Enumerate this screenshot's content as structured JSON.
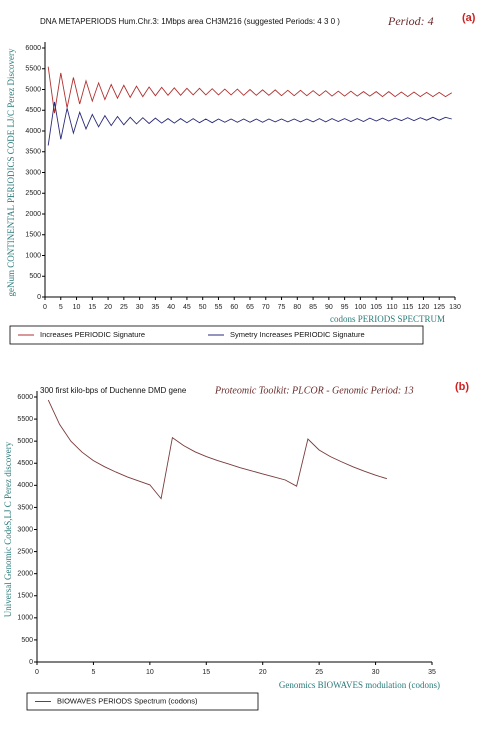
{
  "chart_data": [
    {
      "type": "line",
      "title": "DNA METAPERIODS Hum.Chr.3: 1Mbps area CH3M216 (suggested Periods: 4 3 0 )",
      "annotation": "Period:  4",
      "panel_label": "(a)",
      "x_label": "codons PERIODS SPECTRUM",
      "y_label": "geNum CONTINENTAL PERIODICS CODE LJ/C Perez Discovery",
      "x": [
        1,
        3,
        5,
        7,
        9,
        11,
        13,
        15,
        17,
        19,
        21,
        23,
        25,
        27,
        29,
        31,
        33,
        35,
        37,
        39,
        41,
        43,
        45,
        47,
        49,
        51,
        53,
        55,
        57,
        59,
        61,
        63,
        65,
        67,
        69,
        71,
        73,
        75,
        77,
        79,
        81,
        83,
        85,
        87,
        89,
        91,
        93,
        95,
        97,
        99,
        101,
        103,
        105,
        107,
        109,
        111,
        113,
        115,
        117,
        119,
        121,
        123,
        125,
        127,
        129
      ],
      "series": [
        {
          "name": "Increases PERIODIC Signature",
          "color": "#b03030",
          "values": [
            5550,
            4430,
            5400,
            4560,
            5290,
            4650,
            5210,
            4720,
            5160,
            4760,
            5120,
            4790,
            5100,
            4810,
            5080,
            4830,
            5060,
            4850,
            5050,
            4860,
            5040,
            4860,
            5030,
            4870,
            5030,
            4870,
            5020,
            4870,
            5010,
            4870,
            5010,
            4860,
            5000,
            4860,
            4990,
            4860,
            4990,
            4850,
            4980,
            4850,
            4980,
            4850,
            4970,
            4850,
            4970,
            4840,
            4960,
            4840,
            4960,
            4840,
            4950,
            4840,
            4950,
            4830,
            4950,
            4830,
            4940,
            4830,
            4940,
            4830,
            4930,
            4830,
            4930,
            4830,
            4920
          ]
        },
        {
          "name": "Symetry Increases PERIODIC Signature",
          "color": "#2a2a7a",
          "values": [
            3650,
            4700,
            3800,
            4550,
            3950,
            4450,
            4050,
            4400,
            4100,
            4370,
            4130,
            4350,
            4150,
            4330,
            4170,
            4320,
            4180,
            4310,
            4190,
            4300,
            4190,
            4300,
            4200,
            4300,
            4200,
            4290,
            4200,
            4290,
            4210,
            4290,
            4210,
            4290,
            4210,
            4290,
            4210,
            4290,
            4220,
            4290,
            4220,
            4290,
            4220,
            4290,
            4220,
            4300,
            4220,
            4300,
            4230,
            4300,
            4230,
            4300,
            4230,
            4310,
            4240,
            4310,
            4240,
            4310,
            4250,
            4320,
            4250,
            4320,
            4260,
            4330,
            4260,
            4330,
            4290
          ]
        }
      ],
      "xlim": [
        0,
        130
      ],
      "xticks": [
        0,
        5,
        10,
        15,
        20,
        25,
        30,
        35,
        40,
        45,
        50,
        55,
        60,
        65,
        70,
        75,
        80,
        85,
        90,
        95,
        100,
        105,
        110,
        115,
        120,
        125,
        130
      ],
      "ylim": [
        0,
        6000
      ],
      "yticks": [
        0,
        500,
        1000,
        1500,
        2000,
        2500,
        3000,
        3500,
        4000,
        4500,
        5000,
        5500,
        6000
      ],
      "grid": false
    },
    {
      "type": "line",
      "title": "300 first kilo-bps of Duchenne DMD gene",
      "annotation": "Proteomic Toolkit:  PLCOR  - Genomic Period:  13",
      "panel_label": "(b)",
      "x_label": "Genomics BIOWAVES modulation (codons)",
      "y_label": "Universal Genomic CodeS,LJ C Perez discovery",
      "x": [
        1,
        2,
        3,
        4,
        5,
        6,
        7,
        8,
        9,
        10,
        11,
        12,
        13,
        14,
        15,
        16,
        17,
        18,
        19,
        20,
        21,
        22,
        23,
        24,
        25,
        26,
        27,
        28,
        29,
        30,
        31
      ],
      "series": [
        {
          "name": "BIOWAVES PERIODS Spectrum (codons)",
          "color": "#7a3b3b",
          "values": [
            5930,
            5380,
            5000,
            4750,
            4560,
            4420,
            4300,
            4190,
            4100,
            4010,
            3700,
            5080,
            4900,
            4760,
            4650,
            4560,
            4480,
            4400,
            4330,
            4260,
            4190,
            4120,
            3980,
            5050,
            4800,
            4650,
            4530,
            4420,
            4320,
            4230,
            4150
          ]
        }
      ],
      "xlim": [
        0,
        35
      ],
      "xticks": [
        0,
        5,
        10,
        15,
        20,
        25,
        30,
        35
      ],
      "ylim": [
        0,
        6000
      ],
      "yticks": [
        0,
        500,
        1000,
        1500,
        2000,
        2500,
        3000,
        3500,
        4000,
        4500,
        5000,
        5500,
        6000
      ],
      "grid": false
    }
  ]
}
